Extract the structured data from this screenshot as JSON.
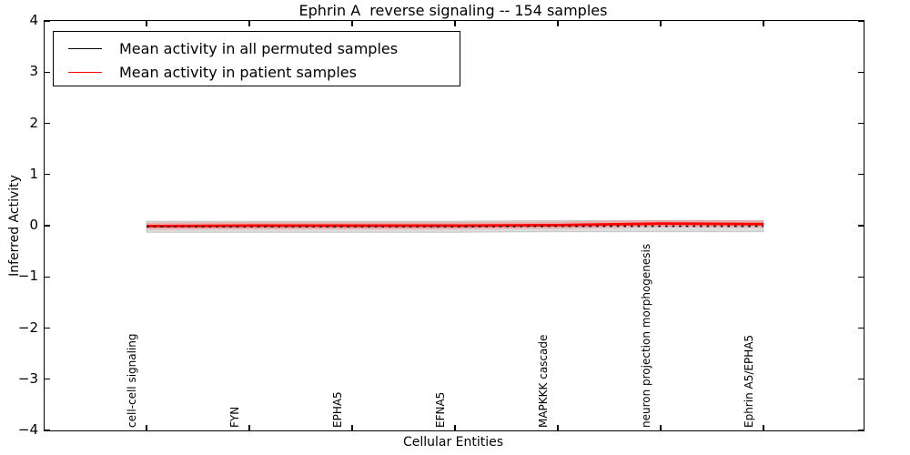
{
  "figure": {
    "title": "Ephrin A  reverse signaling -- 154 samples",
    "xlabel": "Cellular Entities",
    "ylabel": "Inferred Activity"
  },
  "legend": {
    "position": "upper left",
    "items": [
      {
        "label": "Mean activity in all permuted samples",
        "color": "#000000"
      },
      {
        "label": "Mean activity in patient samples",
        "color": "#ff0000"
      }
    ]
  },
  "axes": {
    "yticklabels": [
      "4",
      "3",
      "2",
      "1",
      "0",
      "−1",
      "−2",
      "−3",
      "−4"
    ],
    "xticklabels": [
      "cell-cell signaling",
      "FYN",
      "EPHA5",
      "EFNA5",
      "MAPKKK cascade",
      "neuron projection morphogenesis",
      "Ephrin A5/EPHA5"
    ]
  },
  "chart_data": {
    "type": "line",
    "title": "Ephrin A  reverse signaling -- 154 samples",
    "xlabel": "Cellular Entities",
    "ylabel": "Inferred Activity",
    "ylim": [
      -4,
      4
    ],
    "yticks": [
      4,
      3,
      2,
      1,
      0,
      -1,
      -2,
      -3,
      -4
    ],
    "grid": false,
    "legend_position": "upper left",
    "categories": [
      "cell-cell signaling",
      "FYN",
      "EPHA5",
      "EFNA5",
      "MAPKKK cascade",
      "neuron projection morphogenesis",
      "Ephrin A5/EPHA5"
    ],
    "series": [
      {
        "name": "Mean activity in all permuted samples",
        "color": "#000000",
        "plot_style": "dashed",
        "line_width": 1.6,
        "values": [
          -0.02,
          -0.02,
          -0.02,
          -0.02,
          -0.01,
          -0.01,
          -0.01
        ],
        "band_halfwidth": 0.11,
        "band_color": "rgba(130,130,130,0.28)"
      },
      {
        "name": "Mean activity in patient samples",
        "color": "#ff0000",
        "plot_style": "solid",
        "line_width": 3,
        "values": [
          -0.01,
          0.0,
          0.0,
          0.0,
          0.01,
          0.04,
          0.03
        ],
        "band_halfwidth": 0.07,
        "band_color": "rgba(255,70,70,0.30)"
      }
    ]
  }
}
